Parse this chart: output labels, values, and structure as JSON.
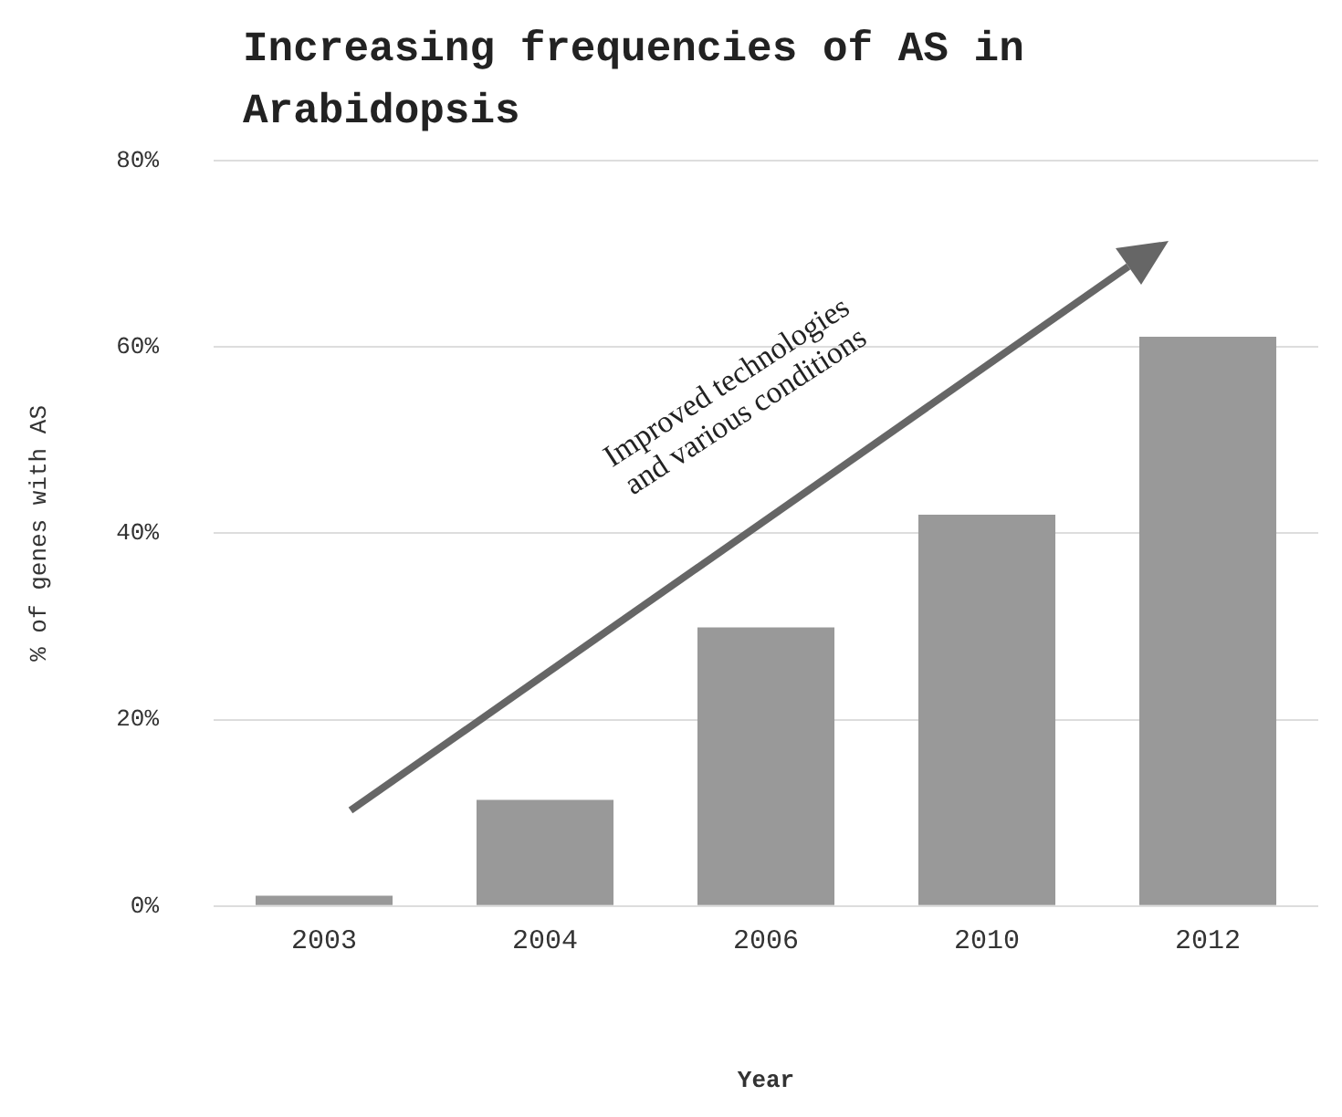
{
  "chart_data": {
    "type": "bar",
    "title": "Increasing frequencies of AS in Arabidopsis",
    "xlabel": "Year",
    "ylabel": "% of genes with AS",
    "categories": [
      "2003",
      "2004",
      "2006",
      "2010",
      "2012"
    ],
    "values": [
      1.1,
      11.4,
      29.9,
      42,
      61.1
    ],
    "color": "#999999",
    "ylim": [
      0,
      80
    ],
    "yticks": [
      {
        "value": 0,
        "label": "0%"
      },
      {
        "value": 20,
        "label": "20%"
      },
      {
        "value": 40,
        "label": "40%"
      },
      {
        "value": 60,
        "label": "60%"
      },
      {
        "value": 80,
        "label": "80%"
      }
    ],
    "grid": "y",
    "annotations": [
      "Improved technologies and various conditions"
    ]
  }
}
